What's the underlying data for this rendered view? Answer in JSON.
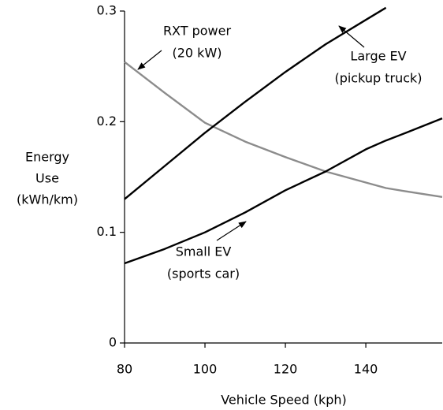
{
  "chart_data": {
    "type": "line",
    "x": [
      80,
      90,
      100,
      110,
      120,
      130,
      140,
      145,
      150,
      159
    ],
    "series": [
      {
        "name": "RXT power (20 kW)",
        "color": "#8c8c8c",
        "values": [
          0.254,
          0.226,
          0.199,
          0.182,
          0.168,
          0.155,
          0.145,
          0.14,
          0.137,
          0.132
        ]
      },
      {
        "name": "Large EV (pickup truck)",
        "color": "#000000",
        "values": [
          0.13,
          0.16,
          0.19,
          0.218,
          0.245,
          0.27,
          0.292,
          0.303,
          null,
          null
        ]
      },
      {
        "name": "Small EV (sports car)",
        "color": "#000000",
        "values": [
          0.072,
          0.085,
          0.1,
          0.118,
          0.138,
          0.155,
          0.175,
          0.183,
          0.19,
          0.203
        ]
      }
    ],
    "annotations": [
      [
        "RXT power",
        "(20 kW)"
      ],
      [
        "Large EV",
        "(pickup truck)"
      ],
      [
        "Small EV",
        "(sports car)"
      ]
    ],
    "y_label": [
      "Energy",
      "Use",
      "(kWh/km)"
    ],
    "x_label": "Vehicle Speed (kph)",
    "xlim": [
      80,
      159
    ],
    "xticks": [
      80,
      100,
      120,
      140
    ],
    "ylim": [
      0,
      0.3
    ],
    "yticks": [
      0,
      0.1,
      0.2,
      0.3
    ]
  }
}
